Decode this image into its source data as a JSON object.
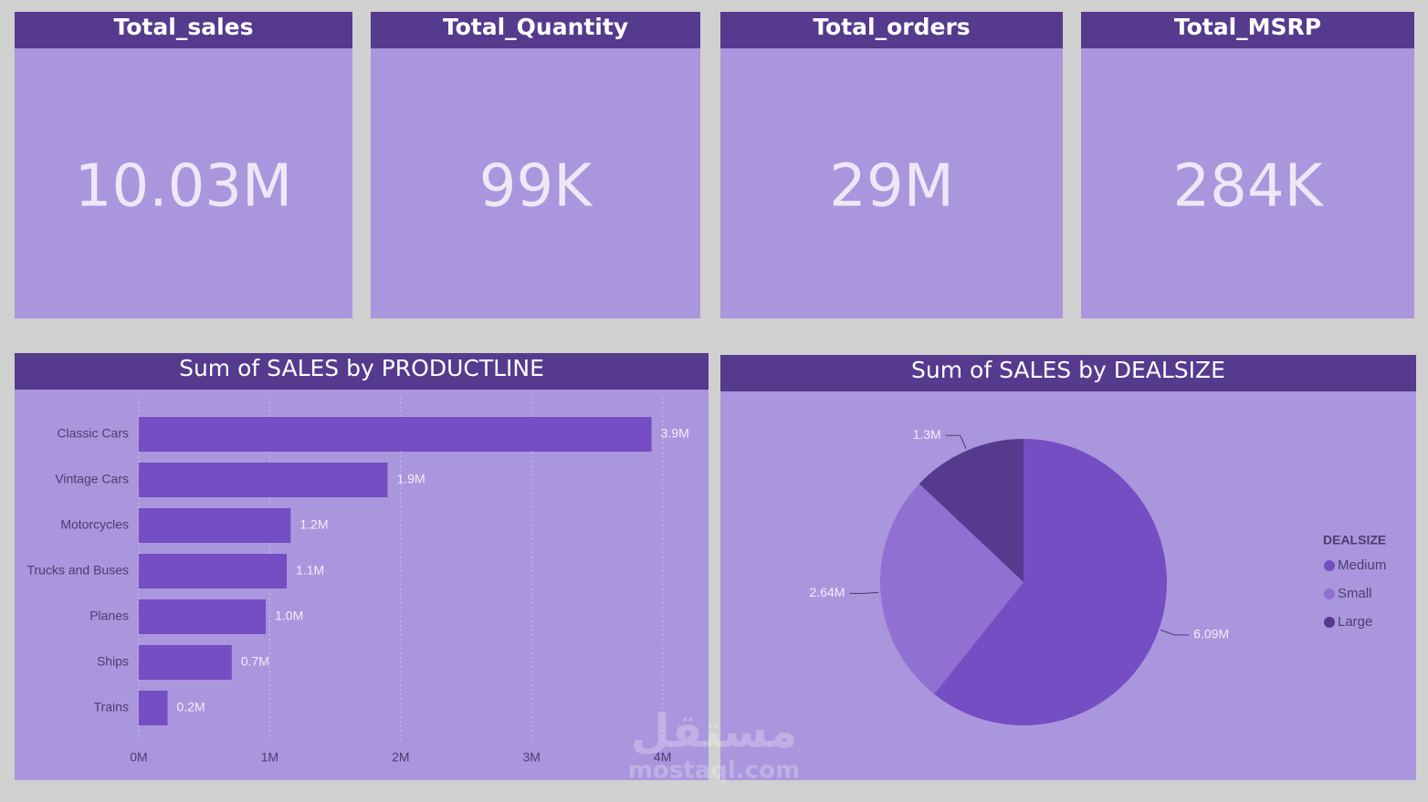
{
  "cards": [
    {
      "title": "Total_sales",
      "value": "10.03M"
    },
    {
      "title": "Total_Quantity",
      "value": "99K"
    },
    {
      "title": "Total_orders",
      "value": "29M"
    },
    {
      "title": "Total_MSRP",
      "value": "284K"
    }
  ],
  "chart_data": [
    {
      "type": "bar",
      "orientation": "horizontal",
      "title": "Sum of SALES by PRODUCTLINE",
      "categories": [
        "Classic Cars",
        "Vintage Cars",
        "Motorcycles",
        "Trucks and Buses",
        "Planes",
        "Ships",
        "Trains"
      ],
      "values": [
        3916000,
        1900000,
        1160000,
        1130000,
        970000,
        710000,
        220000
      ],
      "value_labels": [
        "3.9M",
        "1.9M",
        "1.2M",
        "1.1M",
        "1.0M",
        "0.7M",
        "0.2M"
      ],
      "color": "#744ec2",
      "xlim": [
        0,
        4100000
      ],
      "xticks": [
        {
          "value": 0,
          "label": "0M"
        },
        {
          "value": 1000000,
          "label": "1M"
        },
        {
          "value": 2000000,
          "label": "2M"
        },
        {
          "value": 3000000,
          "label": "3M"
        },
        {
          "value": 4000000,
          "label": "4M"
        }
      ],
      "grid": true
    },
    {
      "type": "pie",
      "title": "Sum of SALES by DEALSIZE",
      "legend_title": "DEALSIZE",
      "categories": [
        "Medium",
        "Small",
        "Large"
      ],
      "values": [
        6090000,
        2640000,
        1300000
      ],
      "value_labels": [
        "6.09M",
        "2.64M",
        "1.3M"
      ],
      "colors": [
        "#744ec2",
        "#9070d0",
        "#553a8e"
      ],
      "legend": "right"
    }
  ],
  "watermark": {
    "arabic": "مستقل",
    "latin": "mostaql.com"
  }
}
